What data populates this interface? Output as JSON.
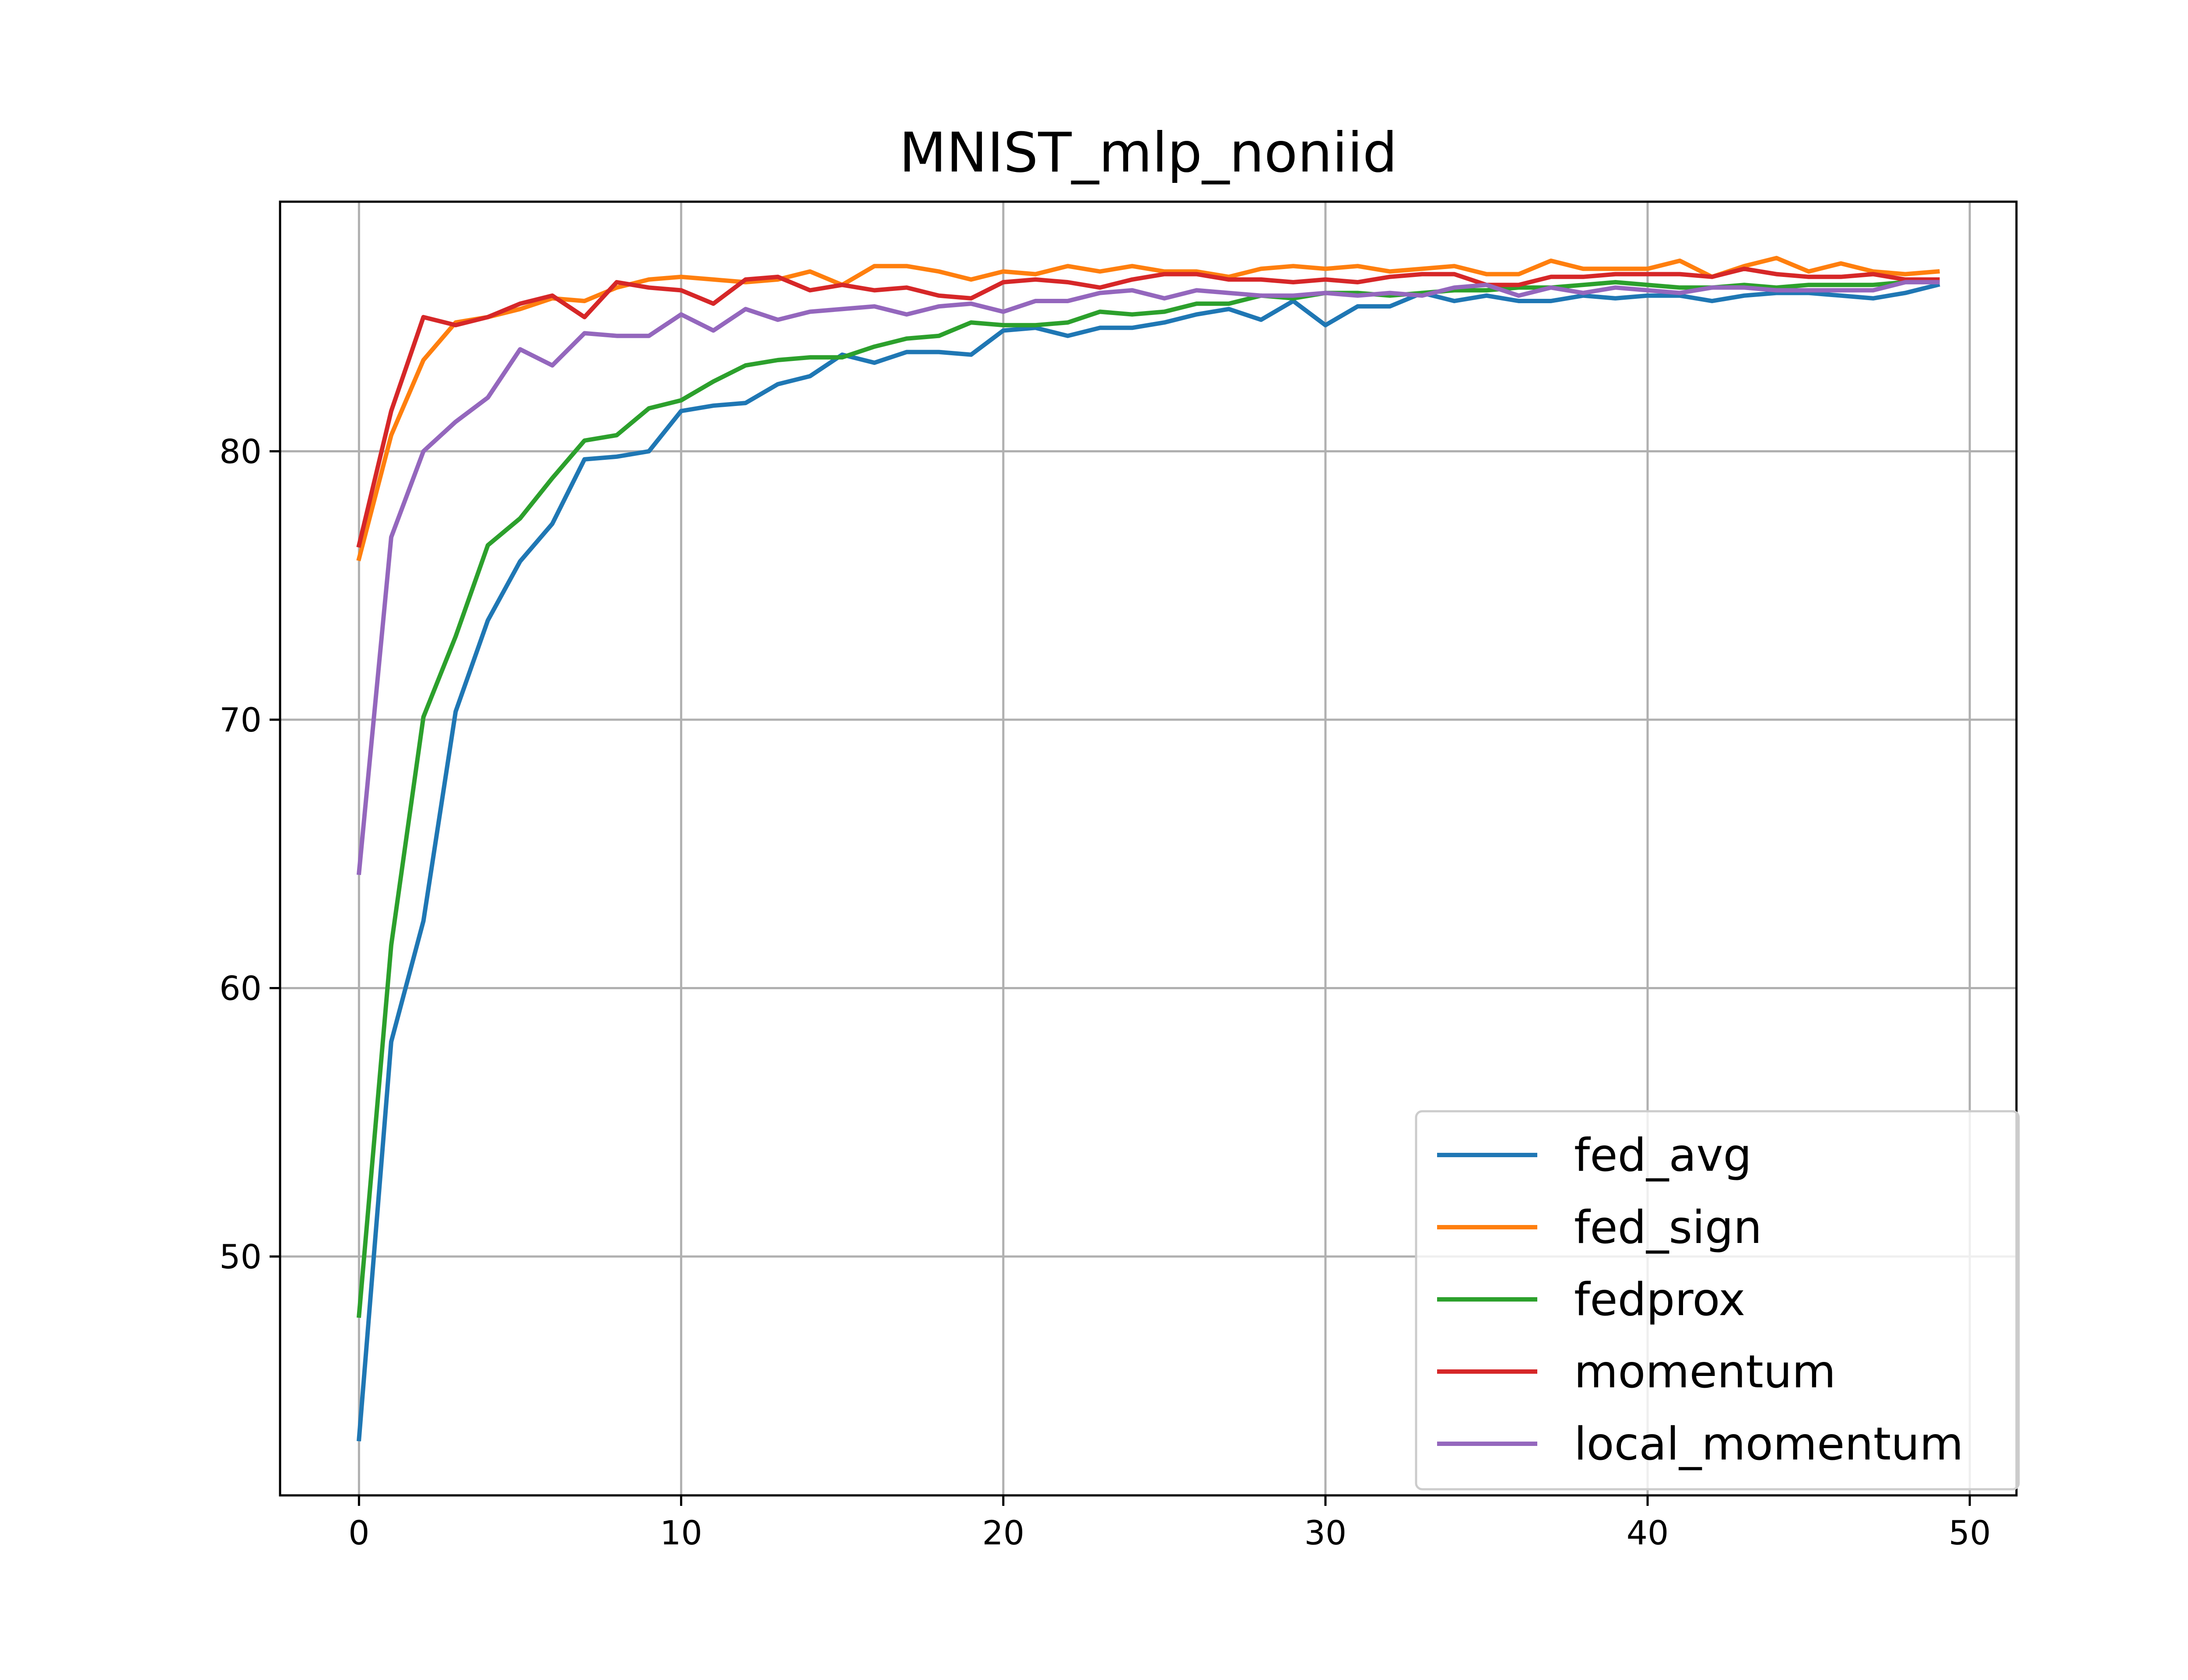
{
  "chart_data": {
    "type": "line",
    "title": "MNIST_mlp_noniid",
    "xlabel": "",
    "ylabel": "",
    "xlim": [
      -2.45,
      51.45
    ],
    "ylim": [
      41.1,
      89.3
    ],
    "xticks": [
      0,
      10,
      20,
      30,
      40,
      50
    ],
    "yticks": [
      50,
      60,
      70,
      80
    ],
    "grid": true,
    "legend_position": "lower-right",
    "x": [
      0,
      1,
      2,
      3,
      4,
      5,
      6,
      7,
      8,
      9,
      10,
      11,
      12,
      13,
      14,
      15,
      16,
      17,
      18,
      19,
      20,
      21,
      22,
      23,
      24,
      25,
      26,
      27,
      28,
      29,
      30,
      31,
      32,
      33,
      34,
      35,
      36,
      37,
      38,
      39,
      40,
      41,
      42,
      43,
      44,
      45,
      46,
      47,
      48,
      49
    ],
    "series": [
      {
        "name": "fed_avg",
        "color": "#1f77b4",
        "values": [
          43.2,
          58.0,
          62.5,
          70.3,
          73.7,
          75.9,
          77.3,
          79.7,
          79.8,
          80.0,
          81.5,
          81.7,
          81.8,
          82.5,
          82.8,
          83.6,
          83.3,
          83.7,
          83.7,
          83.6,
          84.5,
          84.6,
          84.3,
          84.6,
          84.6,
          84.8,
          85.1,
          85.3,
          84.9,
          85.6,
          84.7,
          85.4,
          85.4,
          85.9,
          85.6,
          85.8,
          85.6,
          85.6,
          85.8,
          85.7,
          85.8,
          85.8,
          85.6,
          85.8,
          85.9,
          85.9,
          85.8,
          85.7,
          85.9,
          86.2
        ]
      },
      {
        "name": "fed_sign",
        "color": "#ff7f0e",
        "values": [
          76.0,
          80.6,
          83.4,
          84.8,
          85.0,
          85.3,
          85.7,
          85.6,
          86.1,
          86.4,
          86.5,
          86.4,
          86.3,
          86.4,
          86.7,
          86.2,
          86.9,
          86.9,
          86.7,
          86.4,
          86.7,
          86.6,
          86.9,
          86.7,
          86.9,
          86.7,
          86.7,
          86.5,
          86.8,
          86.9,
          86.8,
          86.9,
          86.7,
          86.8,
          86.9,
          86.6,
          86.6,
          87.1,
          86.8,
          86.8,
          86.8,
          87.1,
          86.5,
          86.9,
          87.2,
          86.7,
          87.0,
          86.7,
          86.6,
          86.7
        ]
      },
      {
        "name": "fedprox",
        "color": "#2ca02c",
        "values": [
          47.8,
          61.6,
          70.1,
          73.1,
          76.5,
          77.5,
          79.0,
          80.4,
          80.6,
          81.6,
          81.9,
          82.6,
          83.2,
          83.4,
          83.5,
          83.5,
          83.9,
          84.2,
          84.3,
          84.8,
          84.7,
          84.7,
          84.8,
          85.2,
          85.1,
          85.2,
          85.5,
          85.5,
          85.8,
          85.7,
          85.9,
          85.9,
          85.8,
          85.9,
          86.0,
          86.0,
          86.1,
          86.1,
          86.2,
          86.3,
          86.2,
          86.1,
          86.1,
          86.2,
          86.1,
          86.2,
          86.2,
          86.2,
          86.3,
          86.3
        ]
      },
      {
        "name": "momentum",
        "color": "#d62728",
        "values": [
          76.5,
          81.5,
          85.0,
          84.7,
          85.0,
          85.5,
          85.8,
          85.0,
          86.3,
          86.1,
          86.0,
          85.5,
          86.4,
          86.5,
          86.0,
          86.2,
          86.0,
          86.1,
          85.8,
          85.7,
          86.3,
          86.4,
          86.3,
          86.1,
          86.4,
          86.6,
          86.6,
          86.4,
          86.4,
          86.3,
          86.4,
          86.3,
          86.5,
          86.6,
          86.6,
          86.2,
          86.2,
          86.5,
          86.5,
          86.6,
          86.6,
          86.6,
          86.5,
          86.8,
          86.6,
          86.5,
          86.5,
          86.6,
          86.4,
          86.4
        ]
      },
      {
        "name": "local_momentum",
        "color": "#9467bd",
        "values": [
          64.3,
          76.8,
          80.0,
          81.1,
          82.0,
          83.8,
          83.2,
          84.4,
          84.3,
          84.3,
          85.1,
          84.5,
          85.3,
          84.9,
          85.2,
          85.3,
          85.4,
          85.1,
          85.4,
          85.5,
          85.2,
          85.6,
          85.6,
          85.9,
          86.0,
          85.7,
          86.0,
          85.9,
          85.8,
          85.8,
          85.9,
          85.8,
          85.9,
          85.8,
          86.1,
          86.2,
          85.8,
          86.1,
          85.9,
          86.1,
          86.0,
          85.9,
          86.1,
          86.1,
          86.0,
          86.0,
          86.0,
          86.0,
          86.3,
          86.3
        ]
      }
    ]
  }
}
